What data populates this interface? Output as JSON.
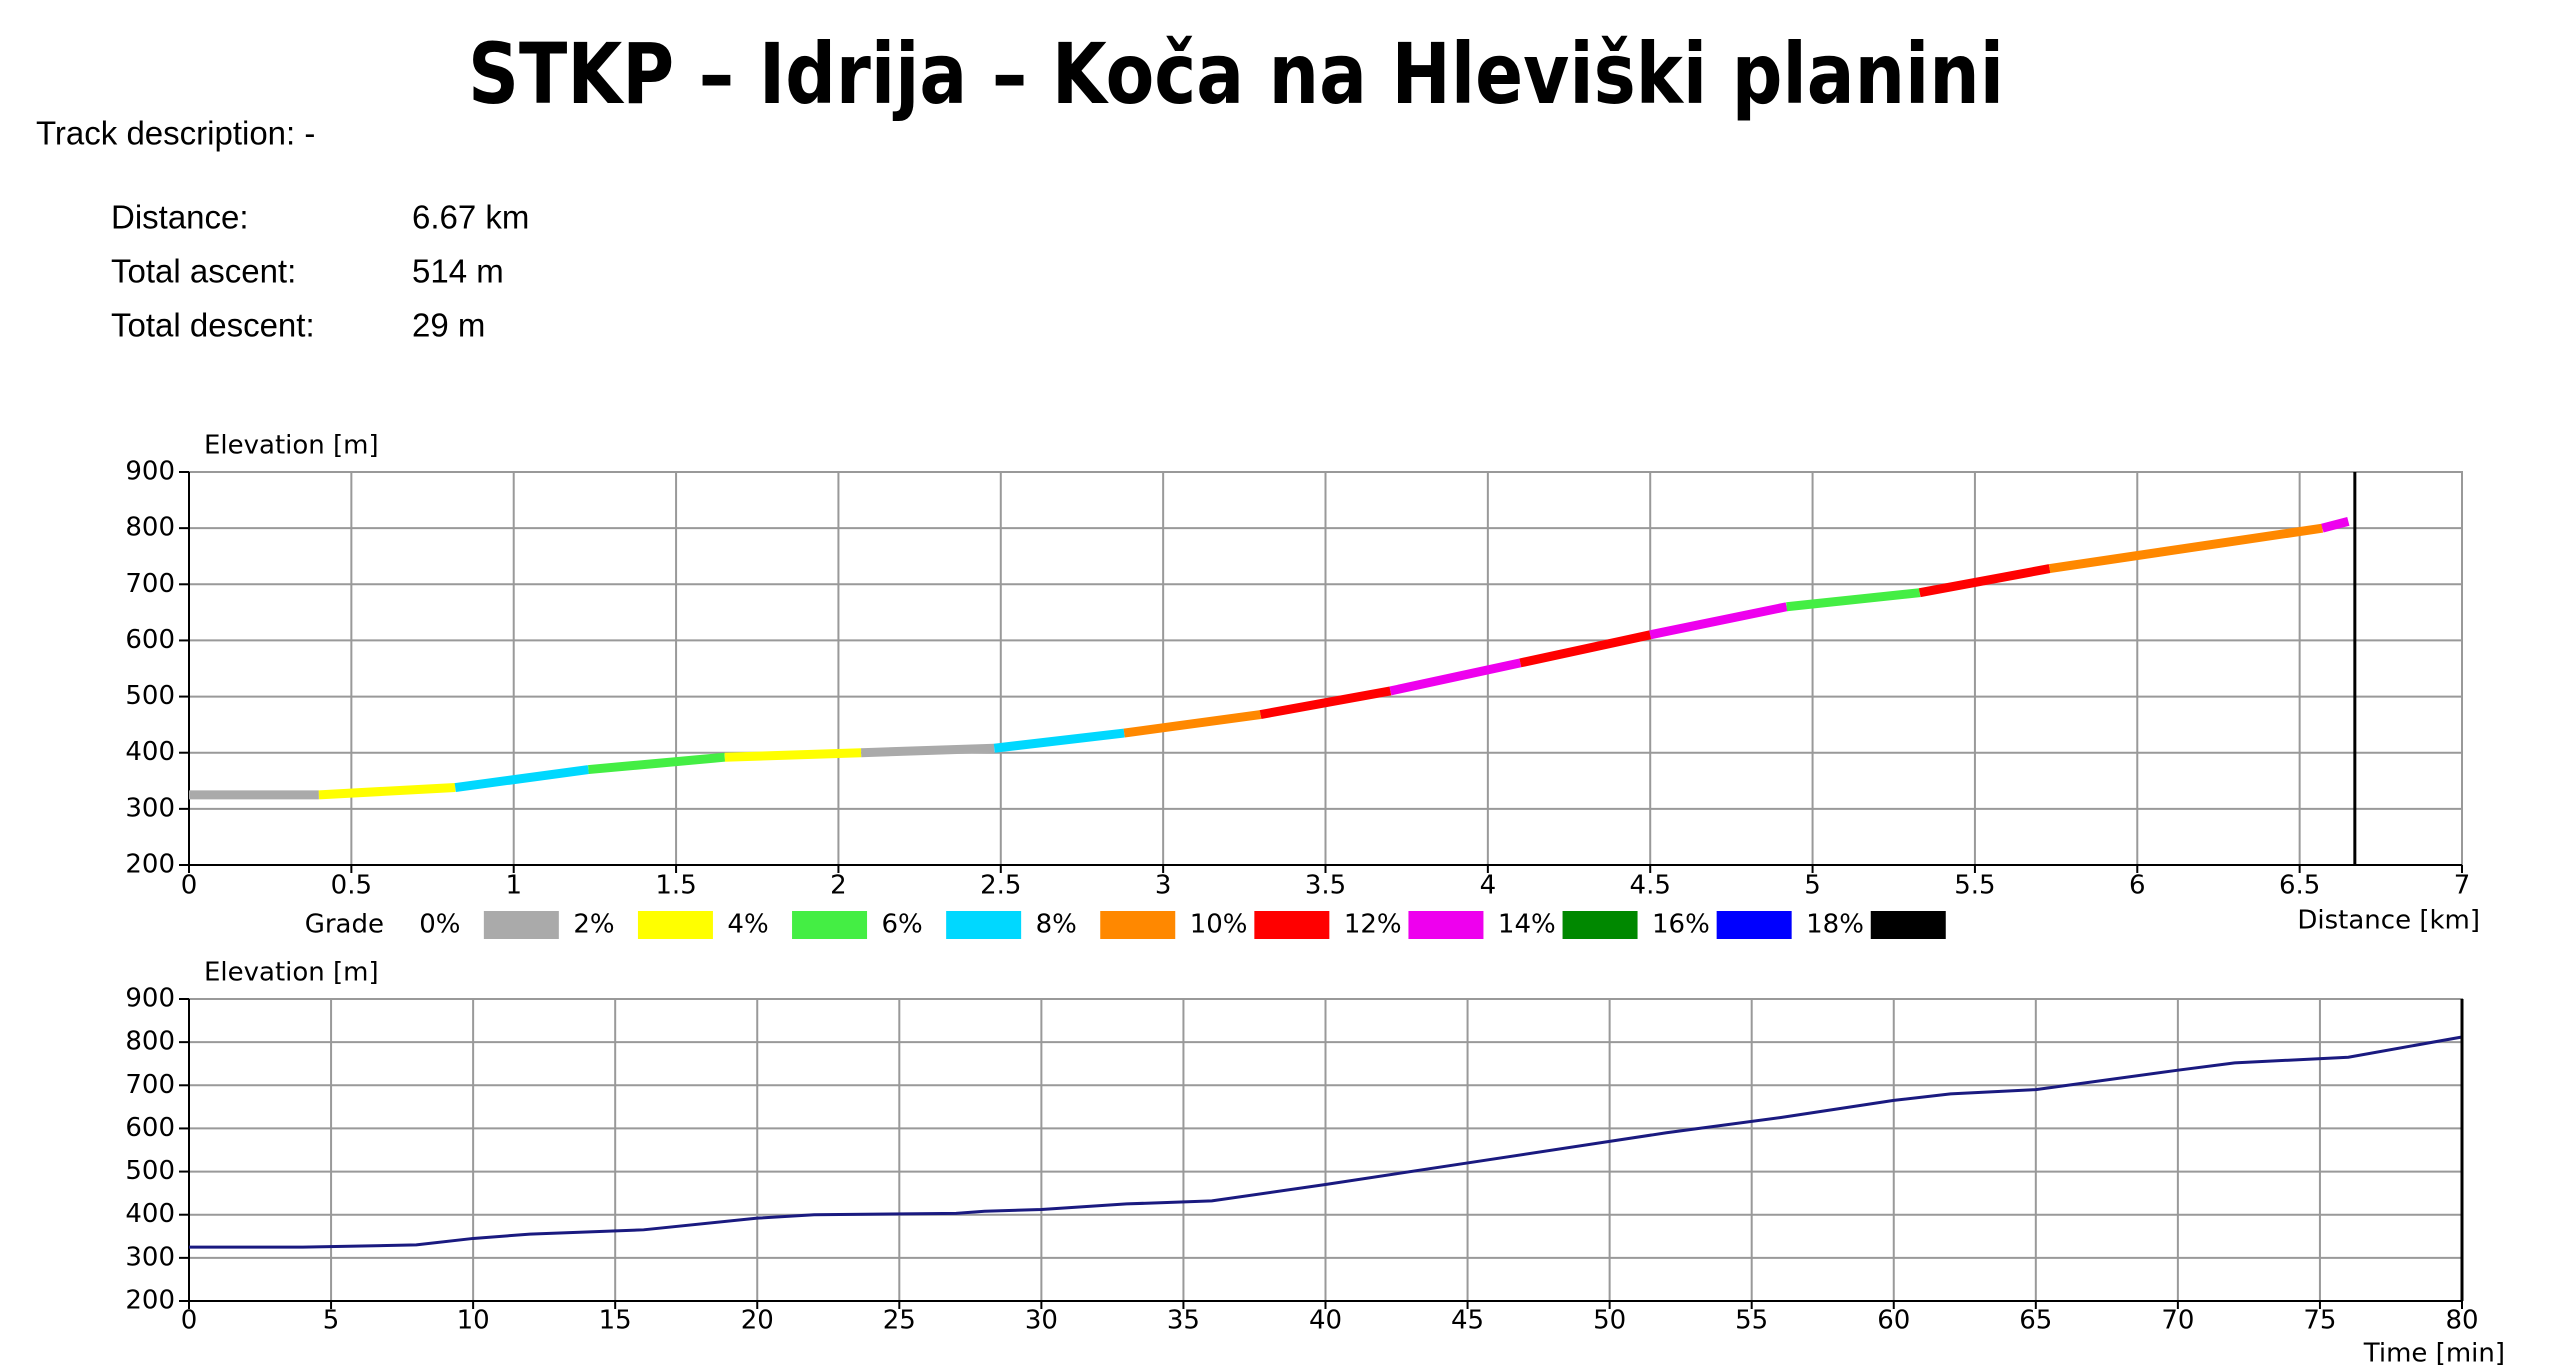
{
  "header": {
    "title": "STKP – Idrija – Koča na Hleviški planini",
    "track_description": "Track description: -"
  },
  "stats": [
    {
      "label": "Distance:",
      "value": "6.67 km"
    },
    {
      "label": "Total ascent:",
      "value": "514 m"
    },
    {
      "label": "Total descent:",
      "value": "29 m"
    }
  ],
  "chart_data": [
    {
      "type": "graded-line",
      "y_label": "Elevation [m]",
      "x_label": "Distance [km]",
      "x": [
        0,
        0.4,
        0.82,
        1.23,
        1.65,
        2.07,
        2.48,
        2.88,
        3.3,
        3.7,
        4.1,
        4.5,
        4.92,
        5.33,
        5.73,
        6.57,
        6.65
      ],
      "values": [
        325,
        325,
        338,
        370,
        392,
        400,
        408,
        435,
        468,
        510,
        560,
        610,
        660,
        685,
        728,
        800,
        812
      ],
      "segment_colors": [
        "#aaaaaa",
        "#ffff00",
        "#00d8ff",
        "#44ee44",
        "#ffff00",
        "#aaaaaa",
        "#00d8ff",
        "#ff8800",
        "#ff0000",
        "#ee00ee",
        "#ff0000",
        "#ee00ee",
        "#44ee44",
        "#ff0000",
        "#ff8800",
        "#ee00ee"
      ],
      "cursor_x": 6.67,
      "xlim": [
        0,
        7
      ],
      "xticks": [
        0,
        0.5,
        1,
        1.5,
        2,
        2.5,
        3,
        3.5,
        4,
        4.5,
        5,
        5.5,
        6,
        6.5,
        7
      ],
      "ylim": [
        200,
        900
      ],
      "yticks": [
        200,
        300,
        400,
        500,
        600,
        700,
        800,
        900
      ],
      "grid": true,
      "legend": {
        "title": "Grade",
        "labels": [
          "0%",
          "2%",
          "4%",
          "6%",
          "8%",
          "10%",
          "12%",
          "14%",
          "16%",
          "18%"
        ],
        "colors": [
          "#aaaaaa",
          "#ffff00",
          "#44ee44",
          "#00d8ff",
          "#ff8800",
          "#ff0000",
          "#ee00ee",
          "#008800",
          "#0000ff",
          "#000000"
        ]
      }
    },
    {
      "type": "line",
      "y_label": "Elevation [m]",
      "x_label": "Time [min]",
      "color": "#1a1a80",
      "x": [
        0,
        4,
        8,
        10,
        12,
        16,
        20,
        22,
        27,
        28,
        30,
        33,
        36,
        40,
        45,
        50,
        52,
        56,
        60,
        62,
        65,
        70,
        72,
        76,
        80
      ],
      "values": [
        325,
        325,
        330,
        345,
        355,
        365,
        392,
        400,
        403,
        408,
        412,
        425,
        432,
        470,
        520,
        570,
        590,
        625,
        665,
        680,
        690,
        735,
        752,
        765,
        812
      ],
      "cursor_x": 80,
      "xlim": [
        0,
        80
      ],
      "xticks": [
        0,
        5,
        10,
        15,
        20,
        25,
        30,
        35,
        40,
        45,
        50,
        55,
        60,
        65,
        70,
        75,
        80
      ],
      "ylim": [
        200,
        900
      ],
      "yticks": [
        200,
        300,
        400,
        500,
        600,
        700,
        800,
        900
      ],
      "grid": true
    }
  ]
}
